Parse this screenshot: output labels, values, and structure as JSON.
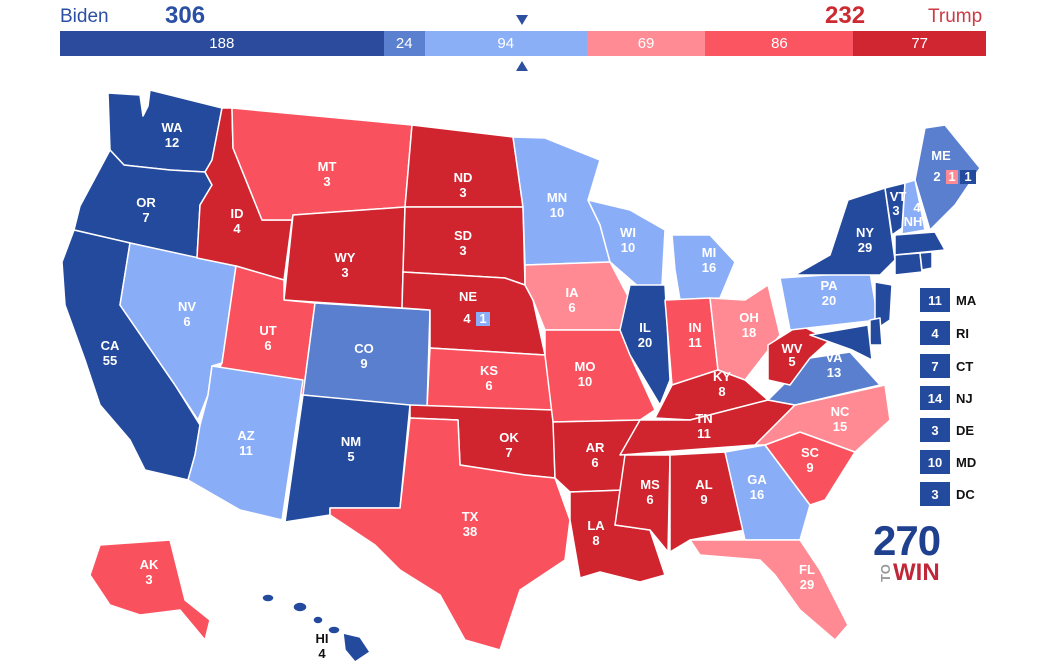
{
  "header": {
    "biden": {
      "name": "Biden",
      "votes": "306",
      "color": "#2a4fa3"
    },
    "trump": {
      "name": "Trump",
      "votes": "232",
      "color": "#cc2a33"
    }
  },
  "tally": [
    {
      "value": 188,
      "label": "188",
      "color": "#2c4b9c"
    },
    {
      "value": 24,
      "label": "24",
      "color": "#5a80cf"
    },
    {
      "value": 94,
      "label": "94",
      "color": "#8aaff7"
    },
    {
      "value": 69,
      "label": "69",
      "color": "#ff8c95"
    },
    {
      "value": 86,
      "label": "86",
      "color": "#fa5560"
    },
    {
      "value": 77,
      "label": "77",
      "color": "#d02632"
    }
  ],
  "colors": {
    "safe_d": "#244a9e",
    "likely_d": "#5a7fce",
    "lean_d": "#8aadf7",
    "lean_r": "#ff8a93",
    "likely_r": "#f9525e",
    "safe_r": "#d0242f"
  },
  "states": {
    "WA": {
      "abbr": "WA",
      "ev": "12"
    },
    "OR": {
      "abbr": "OR",
      "ev": "7"
    },
    "CA": {
      "abbr": "CA",
      "ev": "55"
    },
    "NV": {
      "abbr": "NV",
      "ev": "6"
    },
    "ID": {
      "abbr": "ID",
      "ev": "4"
    },
    "MT": {
      "abbr": "MT",
      "ev": "3"
    },
    "WY": {
      "abbr": "WY",
      "ev": "3"
    },
    "UT": {
      "abbr": "UT",
      "ev": "6"
    },
    "AZ": {
      "abbr": "AZ",
      "ev": "11"
    },
    "CO": {
      "abbr": "CO",
      "ev": "9"
    },
    "NM": {
      "abbr": "NM",
      "ev": "5"
    },
    "ND": {
      "abbr": "ND",
      "ev": "3"
    },
    "SD": {
      "abbr": "SD",
      "ev": "3"
    },
    "NE": {
      "abbr": "NE",
      "ev": "4",
      "split": "1"
    },
    "KS": {
      "abbr": "KS",
      "ev": "6"
    },
    "OK": {
      "abbr": "OK",
      "ev": "7"
    },
    "TX": {
      "abbr": "TX",
      "ev": "38"
    },
    "MN": {
      "abbr": "MN",
      "ev": "10"
    },
    "IA": {
      "abbr": "IA",
      "ev": "6"
    },
    "MO": {
      "abbr": "MO",
      "ev": "10"
    },
    "AR": {
      "abbr": "AR",
      "ev": "6"
    },
    "LA": {
      "abbr": "LA",
      "ev": "8"
    },
    "WI": {
      "abbr": "WI",
      "ev": "10"
    },
    "IL": {
      "abbr": "IL",
      "ev": "20"
    },
    "MI": {
      "abbr": "MI",
      "ev": "16"
    },
    "IN": {
      "abbr": "IN",
      "ev": "11"
    },
    "OH": {
      "abbr": "OH",
      "ev": "18"
    },
    "KY": {
      "abbr": "KY",
      "ev": "8"
    },
    "TN": {
      "abbr": "TN",
      "ev": "11"
    },
    "MS": {
      "abbr": "MS",
      "ev": "6"
    },
    "AL": {
      "abbr": "AL",
      "ev": "9"
    },
    "GA": {
      "abbr": "GA",
      "ev": "16"
    },
    "FL": {
      "abbr": "FL",
      "ev": "29"
    },
    "SC": {
      "abbr": "SC",
      "ev": "9"
    },
    "NC": {
      "abbr": "NC",
      "ev": "15"
    },
    "VA": {
      "abbr": "VA",
      "ev": "13"
    },
    "WV": {
      "abbr": "WV",
      "ev": "5"
    },
    "PA": {
      "abbr": "PA",
      "ev": "20"
    },
    "NY": {
      "abbr": "NY",
      "ev": "29"
    },
    "VT": {
      "abbr": "VT",
      "ev": "3"
    },
    "NH": {
      "abbr": "NH",
      "ev": "4"
    },
    "ME": {
      "abbr": "ME",
      "ev": "2",
      "split_r": "1",
      "split_d": "1"
    },
    "AK": {
      "abbr": "AK",
      "ev": "3"
    },
    "HI": {
      "abbr": "HI",
      "ev": "4"
    }
  },
  "small_states": [
    {
      "abbr": "MA",
      "ev": "11"
    },
    {
      "abbr": "RI",
      "ev": "4"
    },
    {
      "abbr": "CT",
      "ev": "7"
    },
    {
      "abbr": "NJ",
      "ev": "14"
    },
    {
      "abbr": "DE",
      "ev": "3"
    },
    {
      "abbr": "MD",
      "ev": "10"
    },
    {
      "abbr": "DC",
      "ev": "3"
    }
  ],
  "logo": {
    "number": "270",
    "to": "TO",
    "win": "WIN"
  }
}
